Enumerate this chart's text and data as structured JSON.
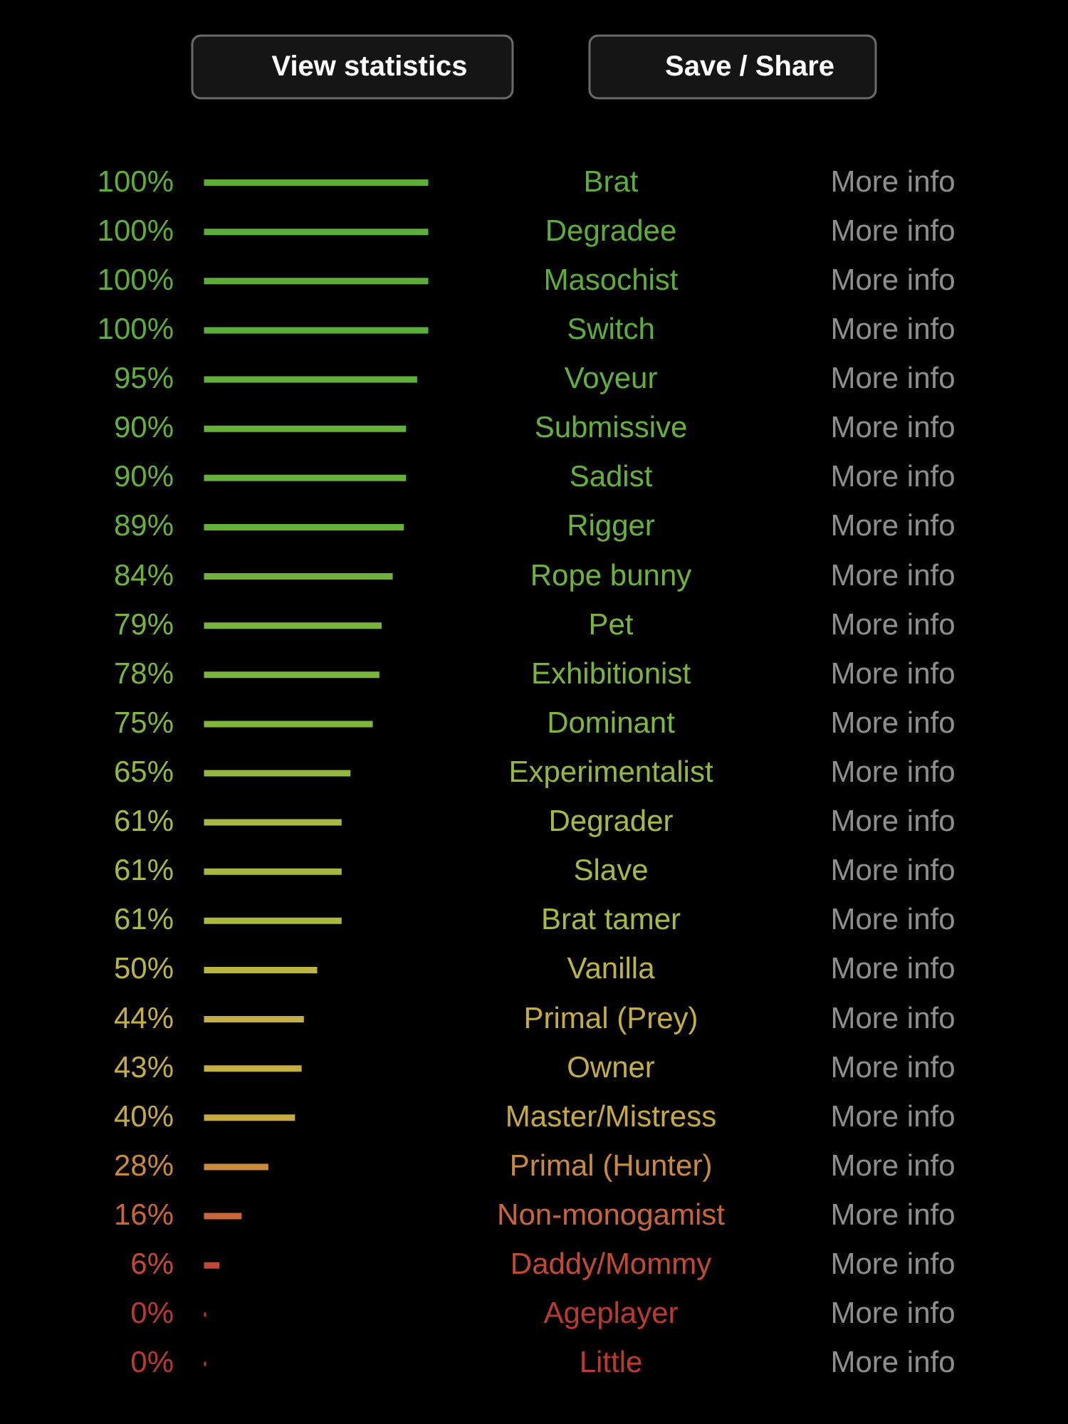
{
  "chart_data": {
    "type": "bar",
    "orientation": "horizontal",
    "categories": [
      "Brat",
      "Degradee",
      "Masochist",
      "Switch",
      "Voyeur",
      "Submissive",
      "Sadist",
      "Rigger",
      "Rope bunny",
      "Pet",
      "Exhibitionist",
      "Dominant",
      "Experimentalist",
      "Degrader",
      "Slave",
      "Brat tamer",
      "Vanilla",
      "Primal (Prey)",
      "Owner",
      "Master/Mistress",
      "Primal (Hunter)",
      "Non-monogamist",
      "Daddy/Mommy",
      "Ageplayer",
      "Little"
    ],
    "values": [
      100,
      100,
      100,
      100,
      95,
      90,
      90,
      89,
      84,
      79,
      78,
      75,
      65,
      61,
      61,
      61,
      50,
      44,
      43,
      40,
      28,
      16,
      6,
      0,
      0
    ],
    "value_labels": [
      "100%",
      "100%",
      "100%",
      "100%",
      "95%",
      "90%",
      "90%",
      "89%",
      "84%",
      "79%",
      "78%",
      "75%",
      "65%",
      "61%",
      "61%",
      "61%",
      "50%",
      "44%",
      "43%",
      "40%",
      "28%",
      "16%",
      "6%",
      "0%",
      "0%"
    ],
    "colors": [
      "#5cad3a",
      "#5cad3a",
      "#5cad3a",
      "#5cad3a",
      "#62b03c",
      "#66b03c",
      "#66b03c",
      "#68b03c",
      "#6eb23d",
      "#78b43e",
      "#7ab43e",
      "#80b53f",
      "#92b840",
      "#a8b842",
      "#a8b842",
      "#a8b842",
      "#bcb443",
      "#c4ad45",
      "#c4ad45",
      "#c6a845",
      "#c98a3f",
      "#c9653a",
      "#c04a35",
      "#b83a30",
      "#b83a30"
    ],
    "annotations": [
      "View statistics",
      "Save / Share",
      "More info"
    ]
  }
}
